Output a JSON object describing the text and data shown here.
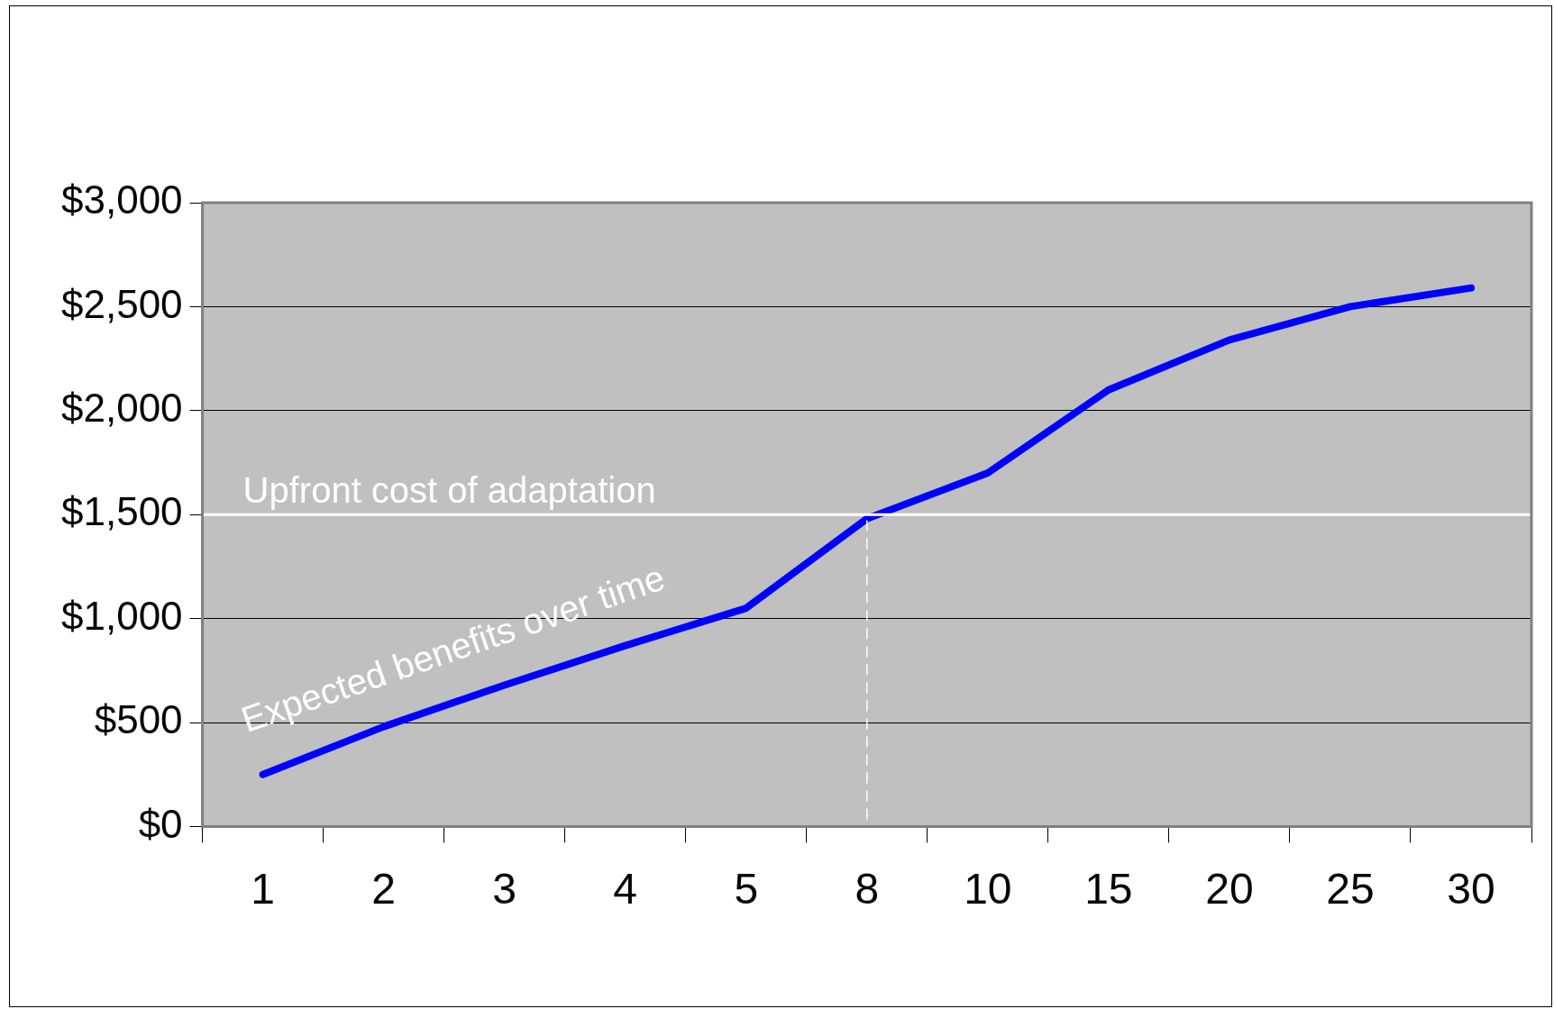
{
  "chart_data": {
    "type": "line",
    "categories": [
      "1",
      "2",
      "3",
      "4",
      "5",
      "8",
      "10",
      "15",
      "20",
      "25",
      "30"
    ],
    "series": [
      {
        "color": "#0000ff",
        "values": [
          250,
          480,
          680,
          870,
          1050,
          1480,
          1700,
          2100,
          2340,
          2500,
          2590
        ]
      }
    ],
    "ylim": [
      0,
      3000
    ],
    "yticks": [
      {
        "value": 0,
        "label": "$0"
      },
      {
        "value": 500,
        "label": "$500"
      },
      {
        "value": 1000,
        "label": "$1,000"
      },
      {
        "value": 1500,
        "label": "$1,500"
      },
      {
        "value": 2000,
        "label": "$2,000"
      },
      {
        "value": 2500,
        "label": "$2,500"
      },
      {
        "value": 3000,
        "label": "$3,000"
      }
    ],
    "grid": "y",
    "legend": false,
    "marker": "none",
    "line_style": "solid",
    "ref_lines": [
      {
        "axis": "y",
        "value": 1500,
        "label": "Upfront cost of adaptation",
        "color": "#ffffff",
        "line_style": "solid"
      },
      {
        "axis": "x",
        "value": "8",
        "color": "#ffffff",
        "line_style": "dashed"
      }
    ],
    "annotations": [
      "Expected benefits over time"
    ]
  }
}
